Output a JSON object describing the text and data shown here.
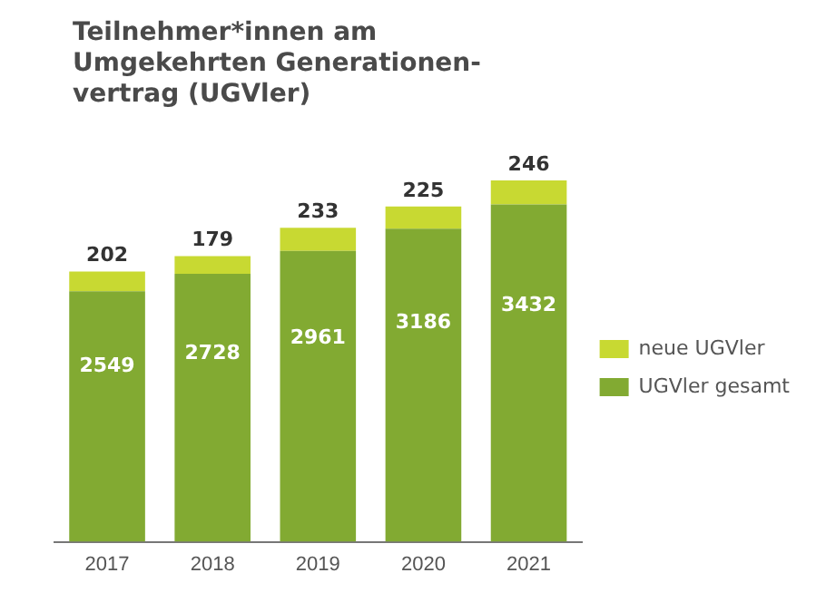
{
  "chart_data": {
    "type": "bar",
    "title": "Teilnehmer*innen am\nUmgekehrten Generationen-\nvertrag (UGVler)",
    "categories": [
      "2017",
      "2018",
      "2019",
      "2020",
      "2021"
    ],
    "stacked": true,
    "data_labels": true,
    "legend": "right",
    "grid": false,
    "series": [
      {
        "name": "UGVler gesamt",
        "color": "#82aa32",
        "values": [
          2549,
          2728,
          2961,
          3186,
          3432
        ]
      },
      {
        "name": "neue UGVler",
        "color": "#c8d932",
        "values": [
          202,
          179,
          233,
          225,
          246
        ]
      }
    ]
  }
}
